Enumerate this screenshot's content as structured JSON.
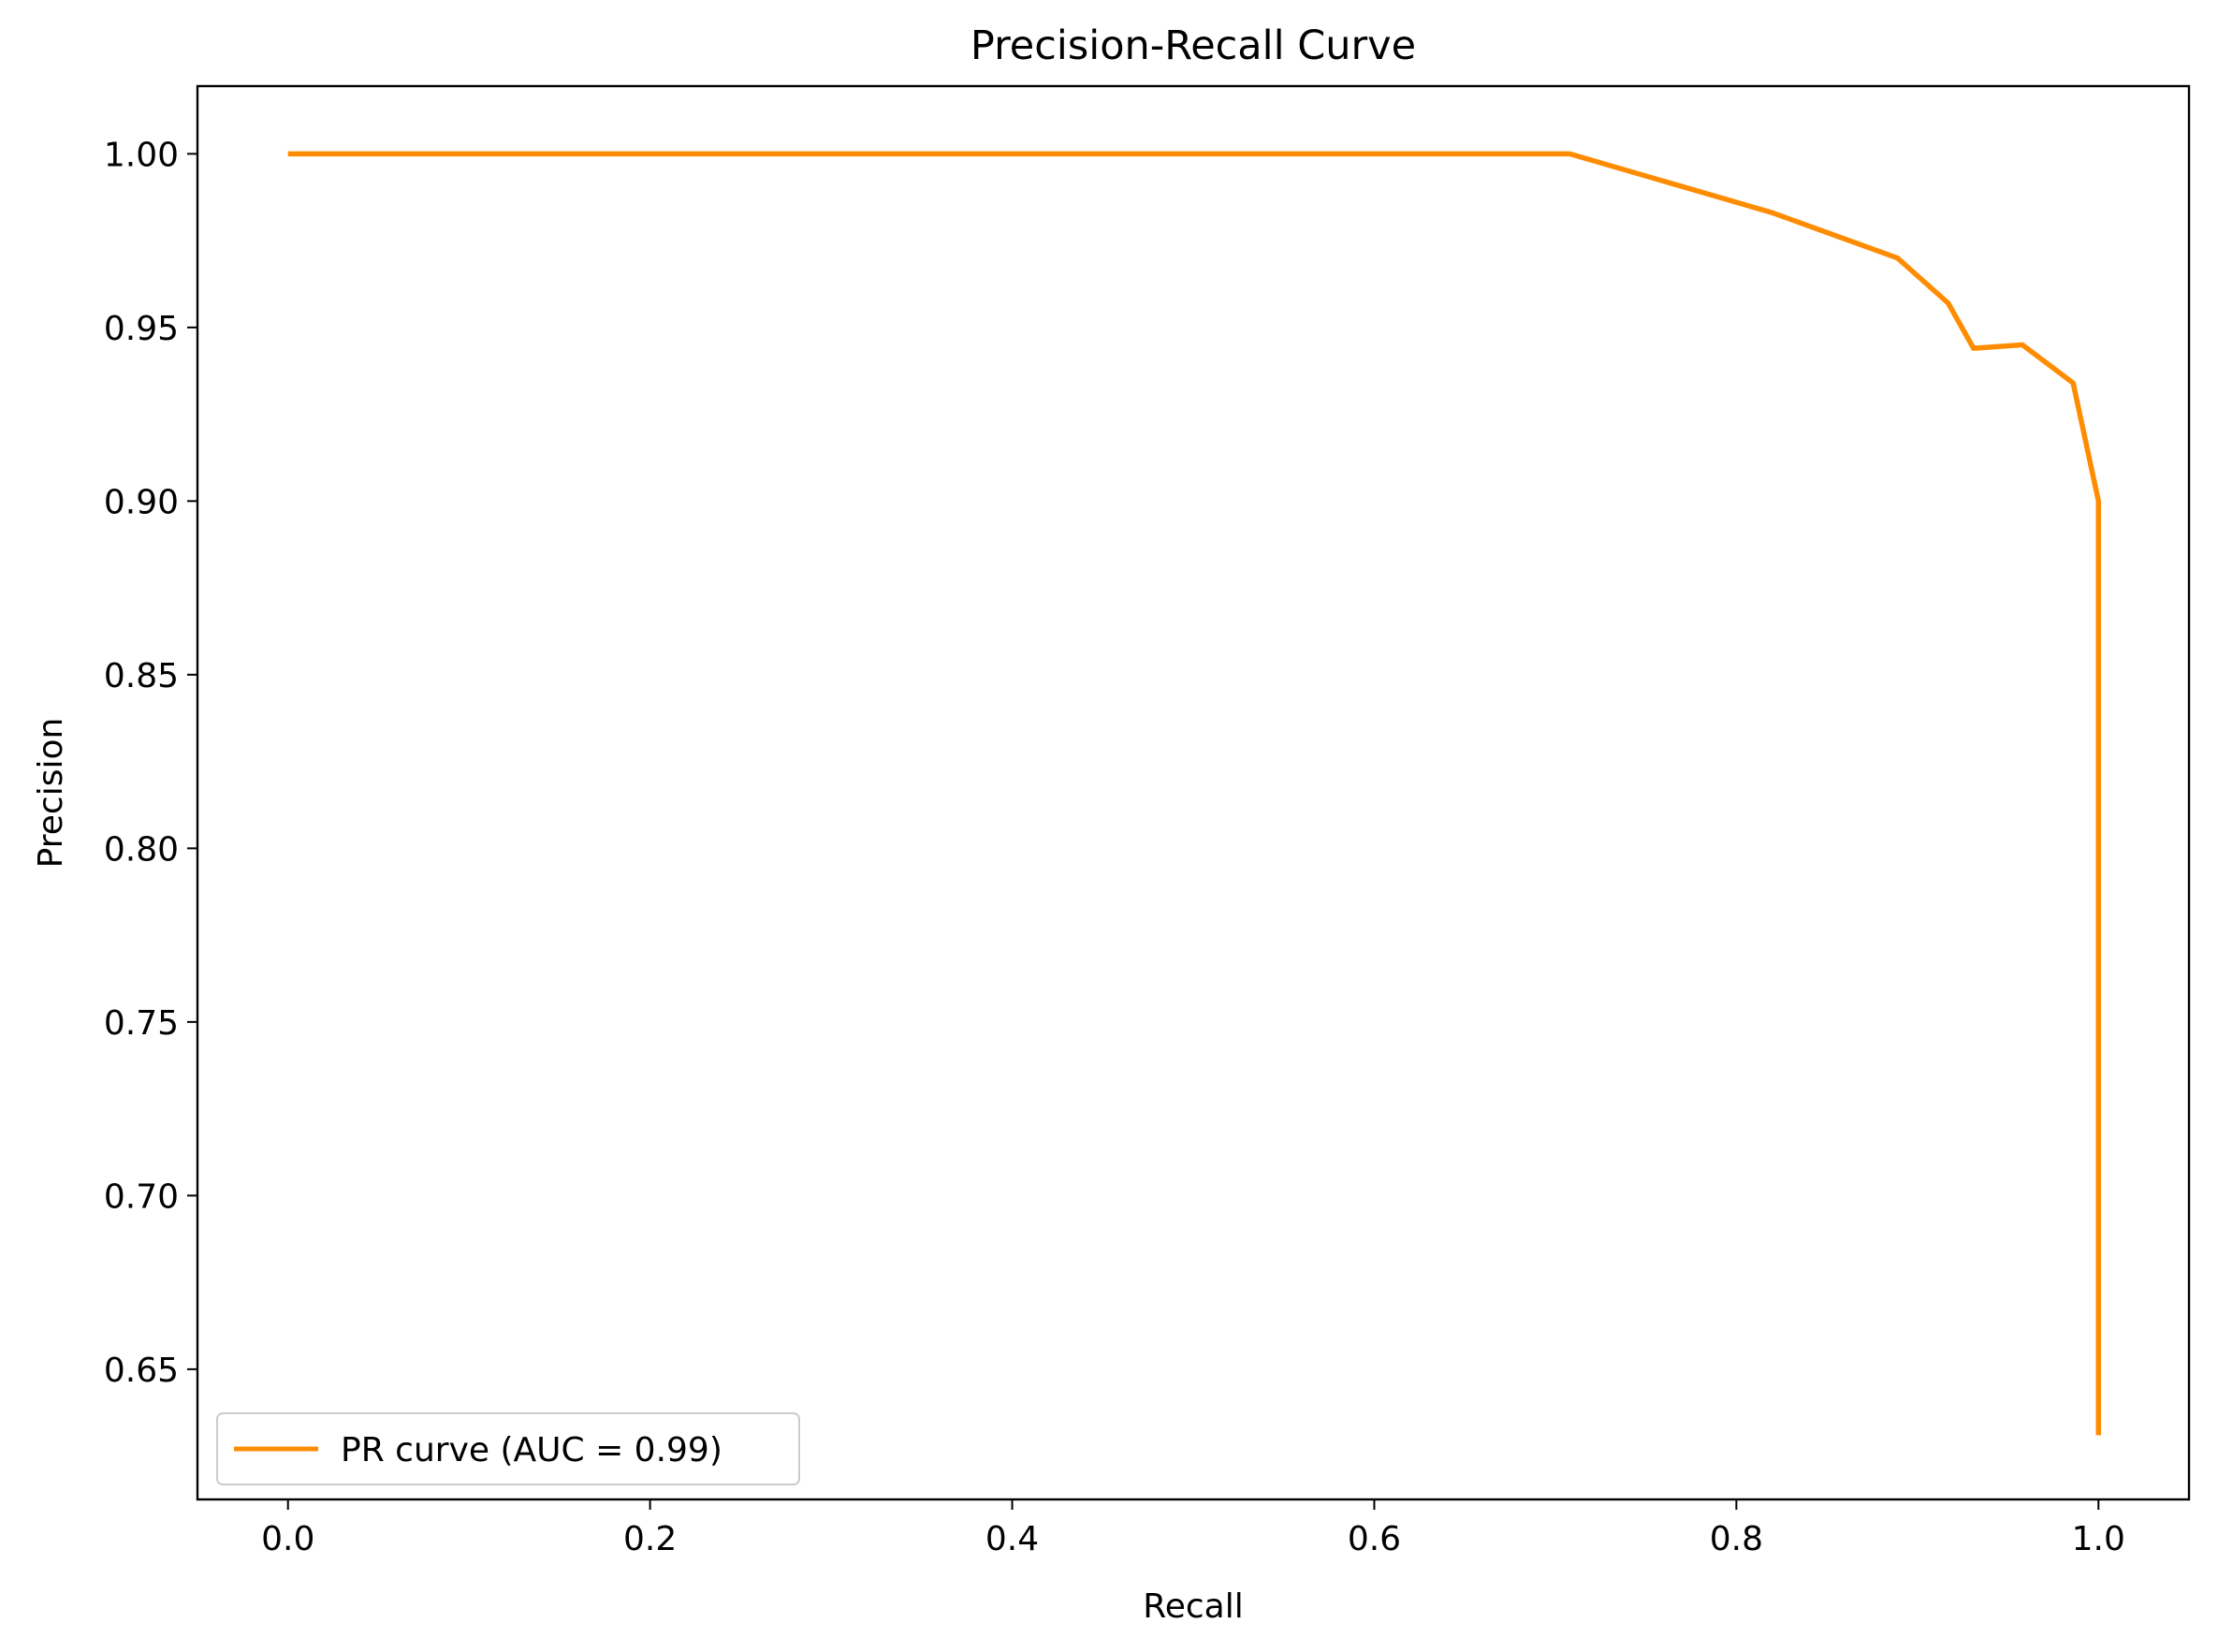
{
  "chart_data": {
    "type": "line",
    "title": "Precision-Recall Curve",
    "xlabel": "Recall",
    "ylabel": "Precision",
    "xlim": [
      -0.05,
      1.05
    ],
    "ylim": [
      0.6125,
      1.0195
    ],
    "xticks": [
      0.0,
      0.2,
      0.4,
      0.6,
      0.8,
      1.0
    ],
    "xtick_labels": [
      "0.0",
      "0.2",
      "0.4",
      "0.6",
      "0.8",
      "1.0"
    ],
    "yticks": [
      0.65,
      0.7,
      0.75,
      0.8,
      0.85,
      0.9,
      0.95,
      1.0
    ],
    "ytick_labels": [
      "0.65",
      "0.70",
      "0.75",
      "0.80",
      "0.85",
      "0.90",
      "0.95",
      "1.00"
    ],
    "grid": false,
    "legend_position": "lower-left",
    "series": [
      {
        "name": "PR curve (AUC = 0.99)",
        "color": "#ff8c00",
        "x": [
          0.0,
          0.708,
          0.82,
          0.889,
          0.917,
          0.931,
          0.958,
          0.986,
          1.0,
          1.0
        ],
        "y": [
          1.0,
          1.0,
          0.983,
          0.97,
          0.957,
          0.944,
          0.945,
          0.934,
          0.9,
          0.631
        ]
      }
    ]
  }
}
